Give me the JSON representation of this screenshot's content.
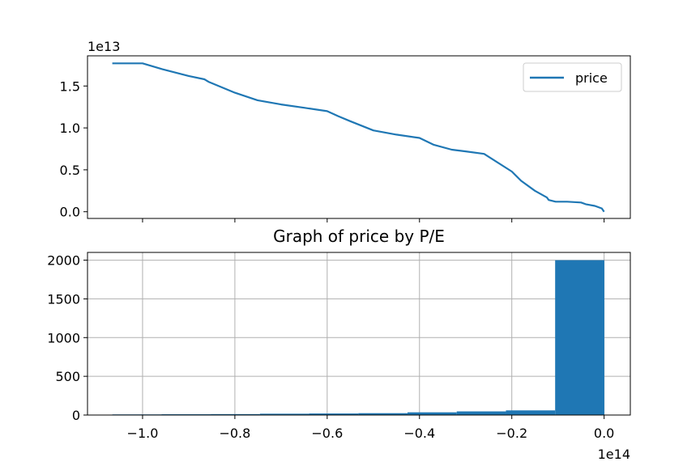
{
  "chart_data": [
    {
      "type": "line",
      "title": "",
      "xlabel": "",
      "ylabel": "",
      "y_offset_label": "1e13",
      "ylim": [
        -0.08,
        1.86
      ],
      "xlim": [
        -1.1193,
        0.0568
      ],
      "grid": false,
      "legend_position": "top-right",
      "yticks": [
        0.0,
        0.5,
        1.0,
        1.5
      ],
      "ytick_labels": [
        "0.0",
        "0.5",
        "1.0",
        "1.5"
      ],
      "xticks": [
        -1.0,
        -0.8,
        -0.6,
        -0.4,
        -0.2,
        0.0
      ],
      "series": [
        {
          "name": "price",
          "x": [
            -1.0655,
            -1.0,
            -0.957,
            -0.9,
            -0.866,
            -0.857,
            -0.8,
            -0.751,
            -0.7,
            -0.65,
            -0.6,
            -0.576,
            -0.55,
            -0.5,
            -0.45,
            -0.4,
            -0.37,
            -0.33,
            -0.3,
            -0.26,
            -0.2,
            -0.18,
            -0.15,
            -0.124,
            -0.12,
            -0.105,
            -0.08,
            -0.05,
            -0.04,
            -0.02,
            -0.005,
            0.0
          ],
          "values": [
            1.77,
            1.77,
            1.7,
            1.62,
            1.58,
            1.55,
            1.42,
            1.33,
            1.28,
            1.24,
            1.2,
            1.14,
            1.08,
            0.97,
            0.92,
            0.88,
            0.8,
            0.74,
            0.72,
            0.69,
            0.48,
            0.37,
            0.25,
            0.17,
            0.14,
            0.12,
            0.12,
            0.11,
            0.09,
            0.07,
            0.04,
            0.0
          ]
        }
      ]
    },
    {
      "type": "bar",
      "title": "Graph of price by P/E",
      "xlabel": "",
      "ylabel": "",
      "x_offset_label": "1e14",
      "ylim": [
        0,
        2100
      ],
      "xlim": [
        -1.1193,
        0.0568
      ],
      "grid": true,
      "yticks": [
        0,
        500,
        1000,
        1500,
        2000
      ],
      "ytick_labels": [
        "0",
        "500",
        "1000",
        "1500",
        "2000"
      ],
      "xticks": [
        -1.0,
        -0.8,
        -0.6,
        -0.4,
        -0.2,
        0.0
      ],
      "xtick_labels": [
        "−1.0",
        "−0.8",
        "−0.6",
        "−0.4",
        "−0.2",
        "0.0"
      ],
      "bin_edges": [
        -1.0655,
        -0.9589,
        -0.8523,
        -0.7457,
        -0.6391,
        -0.5325,
        -0.4259,
        -0.3193,
        -0.2127,
        -0.1061,
        0.0005
      ],
      "values": [
        8,
        10,
        12,
        17,
        20,
        24,
        35,
        47,
        60,
        2000
      ],
      "color": "#1f77b4"
    }
  ]
}
